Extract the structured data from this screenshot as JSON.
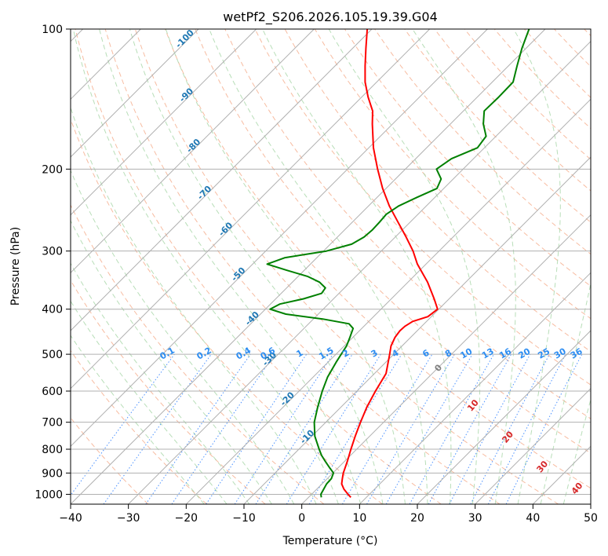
{
  "chart_data": {
    "type": "line",
    "title": "wetPf2_S206.2026.105.19.39.G04",
    "xlabel": "Temperature (°C)",
    "ylabel": "Pressure (hPa)",
    "xlim": [
      -40,
      50
    ],
    "ylim": [
      1050,
      100
    ],
    "y_scale": "log",
    "grid": true,
    "x_ticks": [
      -40,
      -30,
      -20,
      -10,
      0,
      10,
      20,
      30,
      40,
      50
    ],
    "x_tick_labels": [
      "−40",
      "−30",
      "−20",
      "−10",
      "0",
      "10",
      "20",
      "30",
      "40",
      "50"
    ],
    "y_ticks": [
      1000,
      900,
      800,
      700,
      600,
      500,
      400,
      300,
      200,
      100
    ],
    "y_tick_labels": [
      "1000",
      "900",
      "800",
      "700",
      "600",
      "500",
      "400",
      "300",
      "200",
      "100"
    ],
    "series": [
      {
        "name": "Temperature",
        "color": "#ff0000",
        "points": [
          [
            1015,
            7.3
          ],
          [
            1000,
            6.3
          ],
          [
            975,
            4.7
          ],
          [
            950,
            3.4
          ],
          [
            925,
            2.6
          ],
          [
            900,
            1.8
          ],
          [
            850,
            0.5
          ],
          [
            800,
            -1.0
          ],
          [
            750,
            -2.5
          ],
          [
            700,
            -4.0
          ],
          [
            650,
            -5.5
          ],
          [
            600,
            -6.8
          ],
          [
            550,
            -8.0
          ],
          [
            520,
            -9.6
          ],
          [
            500,
            -10.7
          ],
          [
            480,
            -11.9
          ],
          [
            460,
            -12.7
          ],
          [
            445,
            -13.0
          ],
          [
            435,
            -12.9
          ],
          [
            425,
            -12.4
          ],
          [
            415,
            -10.6
          ],
          [
            400,
            -10.2
          ],
          [
            380,
            -12.6
          ],
          [
            350,
            -16.6
          ],
          [
            320,
            -21.5
          ],
          [
            300,
            -24.5
          ],
          [
            280,
            -28.1
          ],
          [
            260,
            -32.1
          ],
          [
            240,
            -36.4
          ],
          [
            220,
            -40.6
          ],
          [
            200,
            -44.8
          ],
          [
            180,
            -49.2
          ],
          [
            160,
            -53.5
          ],
          [
            150,
            -55.7
          ],
          [
            140,
            -58.9
          ],
          [
            130,
            -62.0
          ],
          [
            120,
            -64.8
          ],
          [
            110,
            -67.7
          ],
          [
            100,
            -70.8
          ]
        ]
      },
      {
        "name": "Dewpoint",
        "color": "#008000",
        "points": [
          [
            1015,
            2.2
          ],
          [
            1000,
            1.6
          ],
          [
            975,
            1.2
          ],
          [
            950,
            0.8
          ],
          [
            925,
            0.7
          ],
          [
            900,
            0.1
          ],
          [
            875,
            -1.6
          ],
          [
            850,
            -3.3
          ],
          [
            825,
            -5.0
          ],
          [
            800,
            -6.5
          ],
          [
            750,
            -9.5
          ],
          [
            700,
            -12.0
          ],
          [
            650,
            -14.0
          ],
          [
            600,
            -16.0
          ],
          [
            560,
            -17.5
          ],
          [
            520,
            -18.6
          ],
          [
            500,
            -19.1
          ],
          [
            480,
            -19.6
          ],
          [
            460,
            -20.5
          ],
          [
            440,
            -21.5
          ],
          [
            430,
            -23.0
          ],
          [
            420,
            -28.4
          ],
          [
            410,
            -35.6
          ],
          [
            400,
            -39.2
          ],
          [
            390,
            -38.4
          ],
          [
            380,
            -35.2
          ],
          [
            370,
            -33.0
          ],
          [
            360,
            -33.3
          ],
          [
            350,
            -35.3
          ],
          [
            340,
            -38.4
          ],
          [
            330,
            -43.0
          ],
          [
            320,
            -47.5
          ],
          [
            310,
            -45.5
          ],
          [
            300,
            -39.5
          ],
          [
            290,
            -36.3
          ],
          [
            280,
            -35.4
          ],
          [
            270,
            -35.2
          ],
          [
            260,
            -35.3
          ],
          [
            250,
            -35.5
          ],
          [
            240,
            -34.8
          ],
          [
            230,
            -33.1
          ],
          [
            220,
            -31.2
          ],
          [
            210,
            -32.1
          ],
          [
            200,
            -34.6
          ],
          [
            190,
            -33.8
          ],
          [
            180,
            -31.2
          ],
          [
            170,
            -31.7
          ],
          [
            160,
            -34.3
          ],
          [
            150,
            -36.4
          ],
          [
            140,
            -36.3
          ],
          [
            130,
            -36.4
          ],
          [
            120,
            -38.5
          ],
          [
            110,
            -40.7
          ],
          [
            100,
            -42.8
          ]
        ]
      }
    ],
    "background_lines": {
      "isotherms": "gray solid skewed lines every 10 °C",
      "dry_adiabats": "red dashed",
      "moist_adiabats": "blue dashed",
      "mixing_ratio": "blue dotted",
      "wet_bulb": "green dashed"
    },
    "annotations": {
      "isotherm_labels": [
        "-100",
        "-90",
        "-80",
        "-70",
        "-60",
        "-50",
        "-40",
        "-30",
        "-20",
        "-10"
      ],
      "mixing_ratio_labels": [
        "0.1",
        "0.2",
        "0.4",
        "0.6",
        "1",
        "1.5",
        "2",
        "3",
        "4",
        "6",
        "8",
        "10",
        "13",
        "16",
        "20",
        "25",
        "30",
        "36"
      ],
      "dry_adiabat_labels": [
        "0",
        "10",
        "20",
        "30",
        "40"
      ]
    }
  }
}
